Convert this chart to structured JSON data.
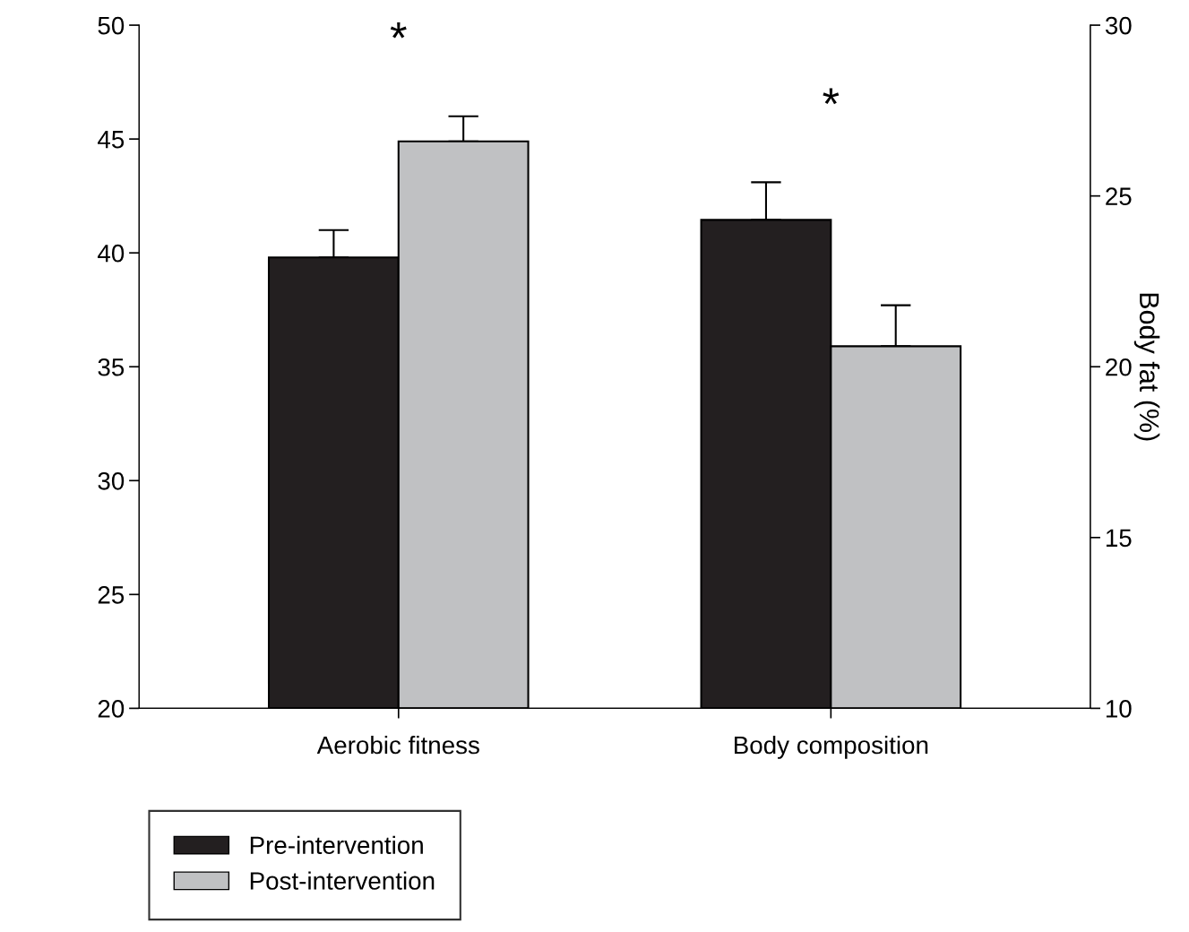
{
  "chart_data": {
    "type": "bar",
    "categories": [
      "Aerobic fitness",
      "Body composition"
    ],
    "y2label": "Body fat (%)",
    "series": [
      {
        "name": "Pre-intervention",
        "color": "#231f20",
        "values": [
          39.8,
          null
        ],
        "errors": [
          1.2,
          null
        ]
      },
      {
        "name": "Post-intervention",
        "color": "#c0c1c3",
        "values": [
          44.9,
          null
        ],
        "errors": [
          1.1,
          null
        ]
      },
      {
        "color": "#231f20",
        "values": [
          null,
          24.3
        ],
        "errors": [
          null,
          1.1
        ],
        "axis": "y2"
      },
      {
        "color": "#c0c1c3",
        "values": [
          null,
          20.6
        ],
        "errors": [
          null,
          1.2
        ],
        "axis": "y2"
      }
    ],
    "ylim": [
      20,
      50
    ],
    "yticks": [
      20,
      25,
      30,
      35,
      40,
      45,
      50
    ],
    "y2lim": [
      10,
      30
    ],
    "y2ticks": [
      10,
      15,
      20,
      25,
      30
    ],
    "annotations": [
      "*",
      "*"
    ],
    "legend": "bottom left",
    "grid": false
  }
}
